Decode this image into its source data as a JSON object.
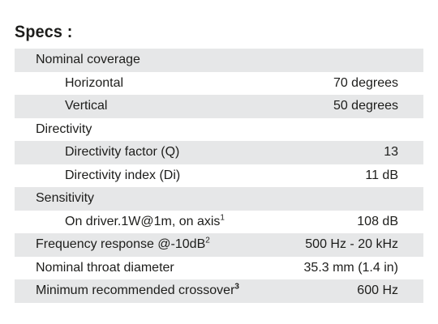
{
  "title": "Specs :",
  "rows": [
    {
      "label": "Nominal coverage",
      "value": ""
    },
    {
      "label": "Horizontal",
      "value": "70 degrees"
    },
    {
      "label": "Vertical",
      "value": "50 degrees"
    },
    {
      "label": "Directivity",
      "value": ""
    },
    {
      "label": "Directivity factor (Q)",
      "value": "13"
    },
    {
      "label": "Directivity index (Di)",
      "value": "11 dB"
    },
    {
      "label": "Sensitivity",
      "value": ""
    },
    {
      "label": "On driver.1W@1m, on axis",
      "sup": "1",
      "value": "108 dB"
    },
    {
      "label": "Frequency response @-10dB",
      "sup": "2",
      "value": "500 Hz - 20 kHz"
    },
    {
      "label": "Nominal throat diameter",
      "value": "35.3 mm (1.4 in)"
    },
    {
      "label": "Minimum recommended crossover",
      "sup": "3",
      "value": "600 Hz"
    }
  ]
}
